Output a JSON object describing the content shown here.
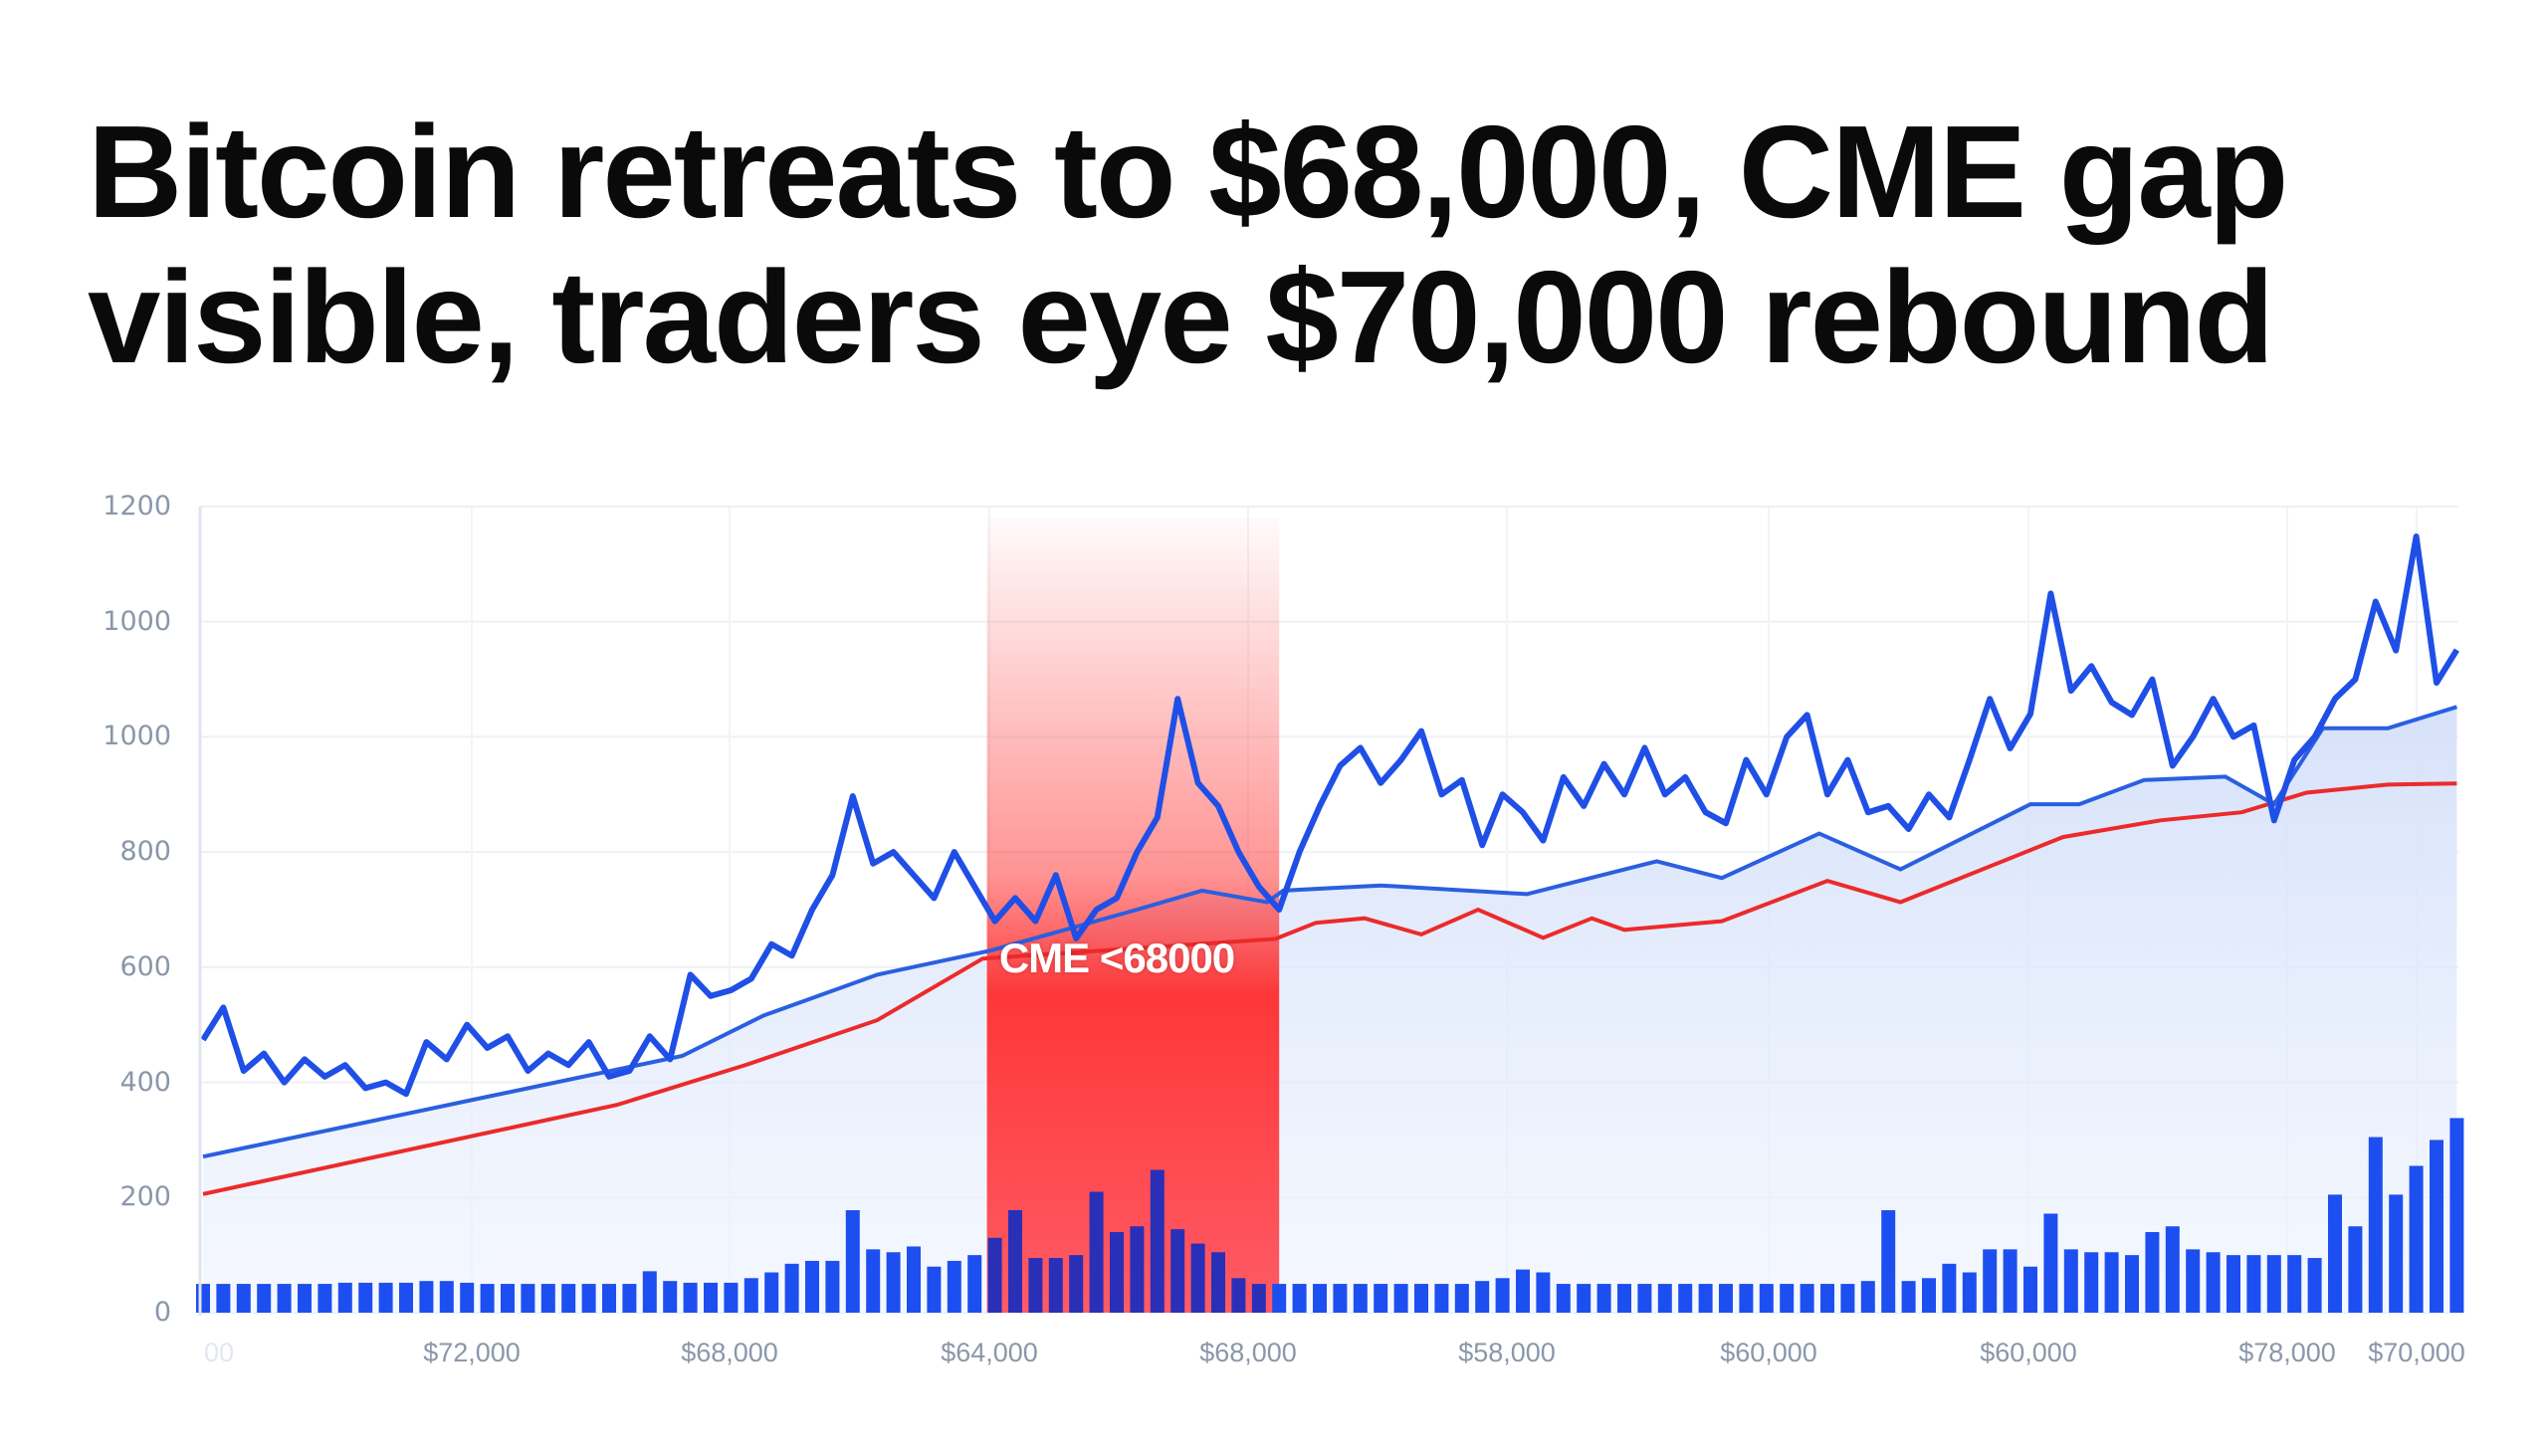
{
  "headline": {
    "line1": "Bitcoin retreats to $68,000, CME gap",
    "line2": "visible, traders eye $70,000 rebound"
  },
  "chart_data": {
    "type": "line",
    "title": "",
    "xlabel": "",
    "ylabel": "",
    "ylim": [
      0,
      1400
    ],
    "grid": true,
    "legend": "none",
    "y_tick_labels": [
      "0",
      "200",
      "400",
      "600",
      "800",
      "1000",
      "1000",
      "1200"
    ],
    "x_tick_labels": [
      "00",
      "$72,000",
      "$68,000",
      "$64,000",
      "$68,000",
      "$58,000",
      "$60,000",
      "$60,000",
      "$78,000",
      "$70,000"
    ],
    "colors": {
      "price": "#1f4fe6",
      "ma_blue": "#2a5fe0",
      "ma_red": "#ec2a2a",
      "volume": "#1d4ff0",
      "gap": "#ff3b3b",
      "area": "#dbe5fa"
    },
    "gap_annotation": {
      "label": "CME <68000",
      "x_start_index": 39,
      "x_end_index": 53
    },
    "series": [
      {
        "role": "price",
        "values": [
          474,
          530,
          420,
          450,
          400,
          440,
          410,
          430,
          390,
          400,
          380,
          470,
          440,
          500,
          460,
          480,
          420,
          450,
          430,
          470,
          410,
          420,
          480,
          440,
          587,
          550,
          560,
          580,
          640,
          620,
          700,
          760,
          897,
          780,
          800,
          760,
          720,
          800,
          740,
          680,
          720,
          680,
          760,
          650,
          700,
          720,
          800,
          860,
          1066,
          920,
          880,
          800,
          740,
          700,
          800,
          880,
          950,
          981,
          920,
          960,
          1010,
          900,
          925,
          812,
          900,
          869,
          820,
          930,
          880,
          953,
          900,
          981,
          900,
          930,
          869,
          850,
          960,
          900,
          1000,
          1038,
          900,
          960,
          869,
          880,
          840,
          900,
          860,
          960,
          1066,
          980,
          1040,
          1249,
          1080,
          1123,
          1060,
          1038,
          1100,
          950,
          1000,
          1066,
          1000,
          1020,
          855,
          960,
          1000,
          1066,
          1100,
          1235,
          1150,
          1348,
          1094,
          1151
        ]
      },
      {
        "role": "moving-average-blue",
        "points": [
          [
            0,
            271
          ],
          [
            14,
            375
          ],
          [
            23.6,
            446
          ],
          [
            27.6,
            516
          ],
          [
            33.2,
            587
          ],
          [
            38.8,
            629
          ],
          [
            46,
            700
          ],
          [
            49.2,
            733
          ],
          [
            52.4,
            713
          ],
          [
            53.2,
            733
          ],
          [
            58,
            742
          ],
          [
            65.2,
            727
          ],
          [
            71.6,
            784
          ],
          [
            74.8,
            755
          ],
          [
            79.6,
            832
          ],
          [
            83.6,
            770
          ],
          [
            90,
            883
          ],
          [
            92.4,
            883
          ],
          [
            95.6,
            925
          ],
          [
            99.6,
            931
          ],
          [
            102,
            883
          ],
          [
            104.4,
            1015
          ],
          [
            107.6,
            1015
          ],
          [
            111,
            1052
          ]
        ]
      },
      {
        "role": "moving-average-red",
        "points": [
          [
            0,
            206
          ],
          [
            20.4,
            361
          ],
          [
            26.8,
            431
          ],
          [
            33.2,
            508
          ],
          [
            38.4,
            615
          ],
          [
            52.8,
            649
          ],
          [
            54.8,
            677
          ],
          [
            57.2,
            685
          ],
          [
            60,
            657
          ],
          [
            62.8,
            700
          ],
          [
            66,
            651
          ],
          [
            68.4,
            685
          ],
          [
            70,
            665
          ],
          [
            74.8,
            680
          ],
          [
            80,
            750
          ],
          [
            83.6,
            713
          ],
          [
            91.6,
            826
          ],
          [
            96.4,
            855
          ],
          [
            100.4,
            869
          ],
          [
            103.6,
            903
          ],
          [
            107.6,
            917
          ],
          [
            111,
            919
          ]
        ]
      },
      {
        "role": "volume",
        "values": [
          50,
          50,
          50,
          50,
          50,
          50,
          50,
          52,
          52,
          52,
          52,
          55,
          55,
          52,
          50,
          50,
          50,
          50,
          50,
          50,
          50,
          50,
          72,
          55,
          52,
          52,
          52,
          60,
          70,
          85,
          90,
          90,
          178,
          110,
          105,
          115,
          80,
          90,
          100,
          130,
          178,
          95,
          95,
          100,
          210,
          140,
          150,
          248,
          145,
          120,
          105,
          60,
          50,
          50,
          50,
          50,
          50,
          50,
          50,
          50,
          50,
          50,
          50,
          55,
          60,
          75,
          70,
          50,
          50,
          50,
          50,
          50,
          50,
          50,
          50,
          50,
          50,
          50,
          50,
          50,
          50,
          50,
          55,
          178,
          55,
          60,
          85,
          70,
          110,
          110,
          80,
          172,
          110,
          105,
          105,
          100,
          140,
          150,
          110,
          105,
          100,
          100,
          100,
          100,
          95,
          205,
          150,
          305,
          205,
          255,
          300,
          338
        ]
      }
    ]
  }
}
